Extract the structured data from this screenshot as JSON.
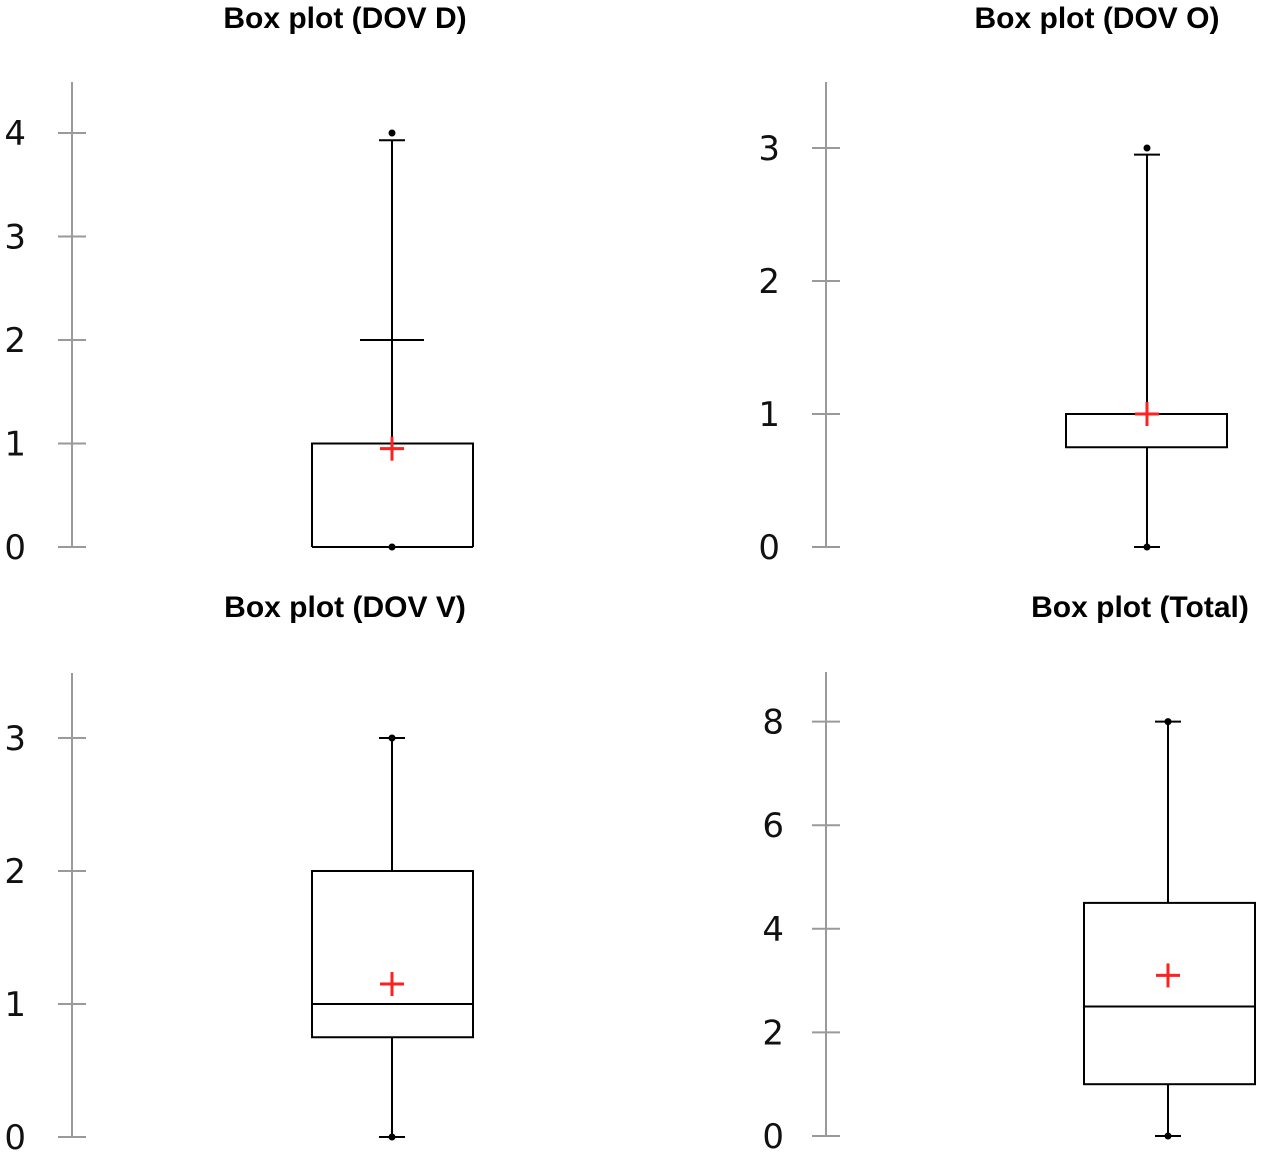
{
  "chart_data": [
    {
      "type": "box",
      "title": "Box plot (DOV  D)",
      "ylim": [
        0,
        4.5
      ],
      "yticks": [
        0,
        1,
        2,
        3,
        4
      ],
      "stats": {
        "min": 0,
        "q1": 0,
        "median": 0,
        "q3": 1,
        "max": 4,
        "mean": 0.95
      },
      "upper_whisker": 3.93,
      "extra_marker": 2,
      "grid": false
    },
    {
      "type": "box",
      "title": "Box plot (DOV  O)",
      "ylim": [
        0,
        3.5
      ],
      "yticks": [
        0,
        1,
        2,
        3
      ],
      "stats": {
        "min": 0,
        "q1": 0.75,
        "median": 1,
        "q3": 1,
        "max": 3,
        "mean": 1.0
      },
      "upper_whisker": 2.95,
      "grid": false
    },
    {
      "type": "box",
      "title": "Box plot (DOV  V)",
      "ylim": [
        0,
        3.5
      ],
      "yticks": [
        0,
        1,
        2,
        3
      ],
      "stats": {
        "min": 0,
        "q1": 0.75,
        "median": 1,
        "q3": 2,
        "max": 3,
        "mean": 1.15
      },
      "grid": false
    },
    {
      "type": "box",
      "title": "Box plot (Total)",
      "ylim": [
        0,
        9
      ],
      "yticks": [
        0,
        2,
        4,
        6,
        8
      ],
      "stats": {
        "min": 0,
        "q1": 1,
        "median": 2.5,
        "q3": 4.5,
        "max": 8,
        "mean": 3.1
      },
      "grid": false
    }
  ]
}
